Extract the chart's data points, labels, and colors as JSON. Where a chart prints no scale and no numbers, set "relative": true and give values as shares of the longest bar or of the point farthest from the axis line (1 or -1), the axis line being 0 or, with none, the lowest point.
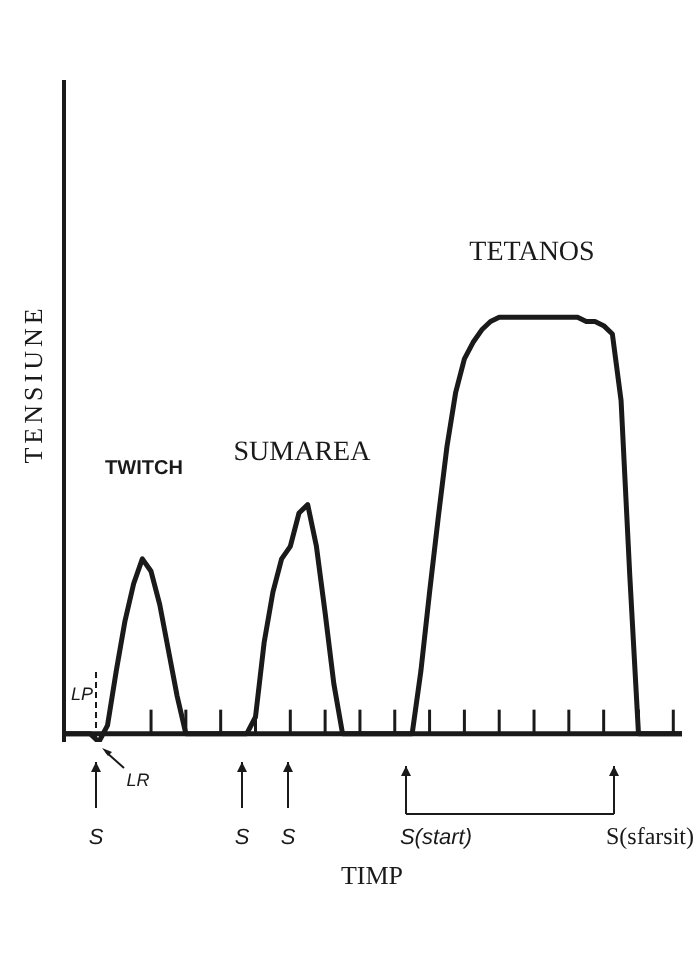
{
  "chart_data": {
    "type": "line",
    "relative": true,
    "xlabel": "TIMP",
    "ylabel": "TENSIUNE",
    "categories": [
      null,
      null,
      null,
      null,
      null,
      null,
      null,
      null,
      null,
      null,
      null,
      null,
      null,
      null,
      null,
      null,
      null,
      null,
      null,
      null,
      null,
      null,
      null,
      null,
      null,
      null,
      null,
      null,
      null,
      null,
      null,
      null,
      null,
      null,
      null,
      null,
      null,
      null,
      null,
      null,
      null,
      null,
      null,
      null,
      null,
      null,
      null,
      null,
      null,
      null,
      null,
      null,
      null,
      null,
      null,
      null,
      null,
      null,
      null,
      null,
      null,
      null,
      null,
      null,
      null,
      null,
      null,
      null,
      null,
      null,
      null,
      null
    ],
    "series": [
      {
        "color": "#1a1a1a",
        "values": [
          0,
          0,
          0,
          0,
          -0.02,
          0.02,
          0.15,
          0.27,
          0.36,
          0.42,
          0.39,
          0.31,
          0.2,
          0.09,
          0,
          0,
          0,
          0,
          0,
          0,
          0,
          0,
          0.04,
          0.22,
          0.34,
          0.42,
          0.45,
          0.53,
          0.55,
          0.45,
          0.29,
          0.12,
          0,
          0,
          0,
          0,
          0,
          0,
          0,
          0,
          0,
          0.15,
          0.34,
          0.52,
          0.69,
          0.82,
          0.9,
          0.94,
          0.97,
          0.99,
          1,
          1,
          1,
          1,
          1,
          1,
          1,
          1,
          1,
          1,
          0.99,
          0.99,
          0.98,
          0.96,
          0.8,
          0.38,
          0,
          0,
          0,
          0,
          0,
          0
        ]
      }
    ],
    "marker": "none",
    "line_style": "solid",
    "annotations": [
      "TWITCH",
      "SUMAREA",
      "TETANOS",
      "LP",
      "LR",
      "S",
      "S",
      "S",
      "S(start)",
      "S(sfarsit)"
    ]
  }
}
